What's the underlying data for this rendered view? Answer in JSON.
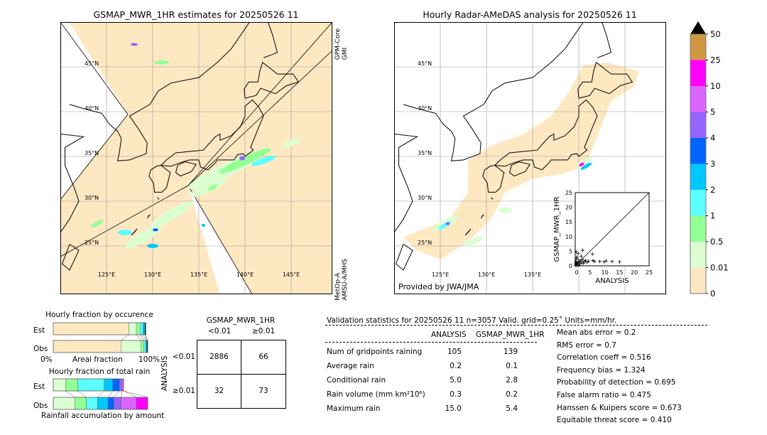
{
  "left_map": {
    "title": "GSMAP_MWR_1HR estimates for 20250526 11",
    "sat_top": [
      "GPM-Core",
      "GMI"
    ],
    "sat_bottom": [
      "MetOp-A",
      "AMSU-A/MHS"
    ]
  },
  "right_map": {
    "title": "Hourly Radar-AMeDAS analysis for 20250526 11",
    "credit": "Provided by JWA/JMA"
  },
  "lat_labels": [
    "45°N",
    "40°N",
    "35°N",
    "30°N",
    "25°N"
  ],
  "lon_labels": [
    "125°E",
    "130°E",
    "135°E",
    "140°E",
    "145°E"
  ],
  "colorbar": {
    "labels": [
      "0",
      "0.01",
      "0.5",
      "1",
      "2",
      "3",
      "4",
      "5",
      "10",
      "25",
      "50"
    ],
    "colors": [
      "#fee8c2",
      "#dcffd2",
      "#94ff94",
      "#5cffff",
      "#00c8ff",
      "#0064ff",
      "#9664ff",
      "#dc64ff",
      "#ff00ff",
      "#d09840"
    ],
    "extend_color": "#000000"
  },
  "scatter": {
    "xlabel": "ANALYSIS",
    "ylabel": "GSMAP_MWR_1HR",
    "ticks": [
      "0",
      "5",
      "10",
      "15",
      "20",
      "25"
    ]
  },
  "chart_data": [
    {
      "type": "scatter",
      "xlabel": "ANALYSIS",
      "ylabel": "GSMAP_MWR_1HR",
      "xlim": [
        0,
        25
      ],
      "ylim": [
        0,
        25
      ],
      "diagonal": true,
      "points": [
        [
          0.1,
          0.2
        ],
        [
          0.3,
          0.5
        ],
        [
          0.5,
          1.0
        ],
        [
          0.2,
          1.5
        ],
        [
          0.8,
          0.4
        ],
        [
          1.0,
          1.2
        ],
        [
          0.4,
          2.5
        ],
        [
          0.6,
          3.0
        ],
        [
          1.2,
          2.0
        ],
        [
          1.5,
          0.8
        ],
        [
          0.3,
          4.8
        ],
        [
          1.0,
          4.2
        ],
        [
          2.5,
          5.3
        ],
        [
          2.0,
          3.3
        ],
        [
          2.4,
          2.2
        ],
        [
          3.0,
          1.5
        ],
        [
          3.5,
          1.8
        ],
        [
          4.0,
          1.2
        ],
        [
          2.8,
          0.9
        ],
        [
          5.8,
          4.0
        ],
        [
          6.0,
          1.8
        ],
        [
          6.5,
          1.5
        ],
        [
          8.3,
          1.5
        ],
        [
          10.5,
          1.7
        ],
        [
          12.5,
          1.5
        ],
        [
          15.0,
          1.4
        ],
        [
          1.8,
          1.6
        ],
        [
          0.7,
          0.1
        ],
        [
          1.3,
          0.3
        ],
        [
          2.2,
          1.0
        ],
        [
          4.5,
          1.6
        ],
        [
          0.2,
          0.9
        ],
        [
          9.8,
          1.4
        ]
      ]
    },
    {
      "type": "bar",
      "title": "Hourly fraction by occurence",
      "xlabel": "Areal fraction",
      "xtick_labels": [
        "0%",
        "100%"
      ],
      "categories": [
        "Est",
        "Obs"
      ],
      "segments": {
        "Est": [
          0.8,
          0.08,
          0.04,
          0.03,
          0.02,
          0.01
        ],
        "Obs": [
          0.72,
          0.21,
          0.03,
          0.02,
          0.01,
          0.01
        ]
      }
    },
    {
      "type": "bar",
      "title": "Hourly fraction of total rain",
      "xlabel": "Rainfall accumulation by amount",
      "categories": [
        "Est",
        "Obs"
      ],
      "segments": {
        "Est": [
          0.13,
          0.13,
          0.28,
          0.09,
          0.07,
          0.025,
          0.02,
          0,
          0
        ],
        "Obs": [
          0.23,
          0.12,
          0.12,
          0.11,
          0.06,
          0.08,
          0.16,
          0.12
        ]
      }
    }
  ],
  "contingency": {
    "title": "GSMAP_MWR_1HR",
    "col_labels": [
      "<0.01",
      "≥0.01"
    ],
    "row_title": "ANALYSIS",
    "row_labels": [
      "<0.01",
      "≥0.01"
    ],
    "cells": [
      [
        "2886",
        "66"
      ],
      [
        "32",
        "73"
      ]
    ]
  },
  "stats": {
    "header": "Validation statistics for 20250526 11  n=3057 Valid. grid=0.25˚ Units=mm/hr.",
    "col_analysis": "ANALYSIS",
    "col_gsmap": "GSMAP_MWR_1HR",
    "rows": [
      {
        "label": "Num of gridpoints raining",
        "a": "105",
        "g": "139"
      },
      {
        "label": "Average rain",
        "a": "0.2",
        "g": "0.1"
      },
      {
        "label": "Conditional rain",
        "a": "5.0",
        "g": "2.8"
      },
      {
        "label": "Rain volume (mm km²10⁶)",
        "a": "0.3",
        "g": "0.2"
      },
      {
        "label": "Maximum rain",
        "a": "15.0",
        "g": "5.4"
      }
    ],
    "scores": [
      "Mean abs error =    0.2",
      "RMS error =    0.7",
      "Correlation coeff =  0.516",
      "Frequency bias =  1.324",
      "Probability of detection =  0.695",
      "False alarm ratio =  0.475",
      "Hanssen & Kuipers score =  0.673",
      "Equitable threat score =  0.410"
    ]
  }
}
